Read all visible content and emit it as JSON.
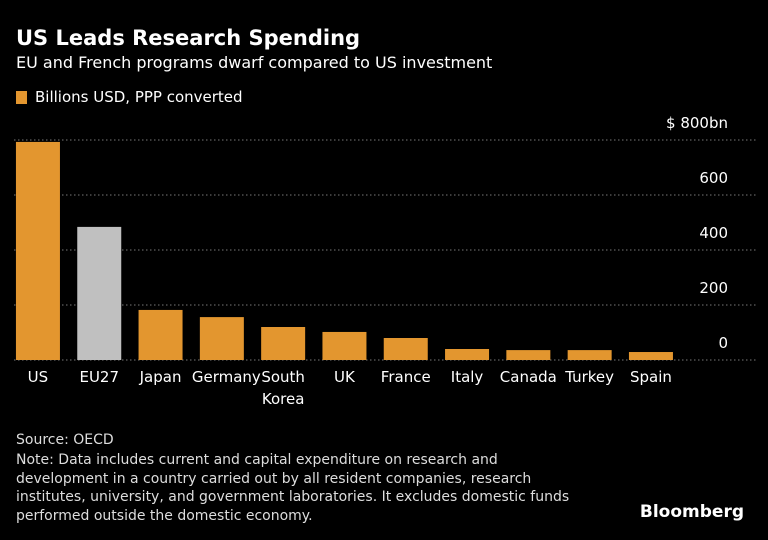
{
  "chart_data": {
    "type": "bar",
    "title": "US Leads Research Spending",
    "subtitle": "EU and French programs dwarf compared to US investment",
    "categories": [
      "US",
      "EU27",
      "Japan",
      "Germany",
      "South Korea",
      "UK",
      "France",
      "Italy",
      "Canada",
      "Turkey",
      "Spain"
    ],
    "series": [
      {
        "name": "Billions USD, PPP converted",
        "color": "#e3962f",
        "values": [
          793,
          484,
          182,
          156,
          120,
          102,
          80,
          40,
          36,
          36,
          29
        ]
      }
    ],
    "bar_colors": [
      "#e3962f",
      "#c0c0c0",
      "#e3962f",
      "#e3962f",
      "#e3962f",
      "#e3962f",
      "#e3962f",
      "#e3962f",
      "#e3962f",
      "#e3962f",
      "#e3962f"
    ],
    "ylim": [
      0,
      800
    ],
    "yticks": [
      0,
      200,
      400,
      600,
      {
        "value": 800,
        "label": "$ 800bn"
      }
    ],
    "grid": true,
    "source": "Source: OECD",
    "note": "Note: Data includes current and capital expenditure on research and development in a country carried out by all resident companies, research institutes, university, and government laboratories. It excludes domestic funds performed outside the domestic economy.",
    "brand": "Bloomberg"
  }
}
